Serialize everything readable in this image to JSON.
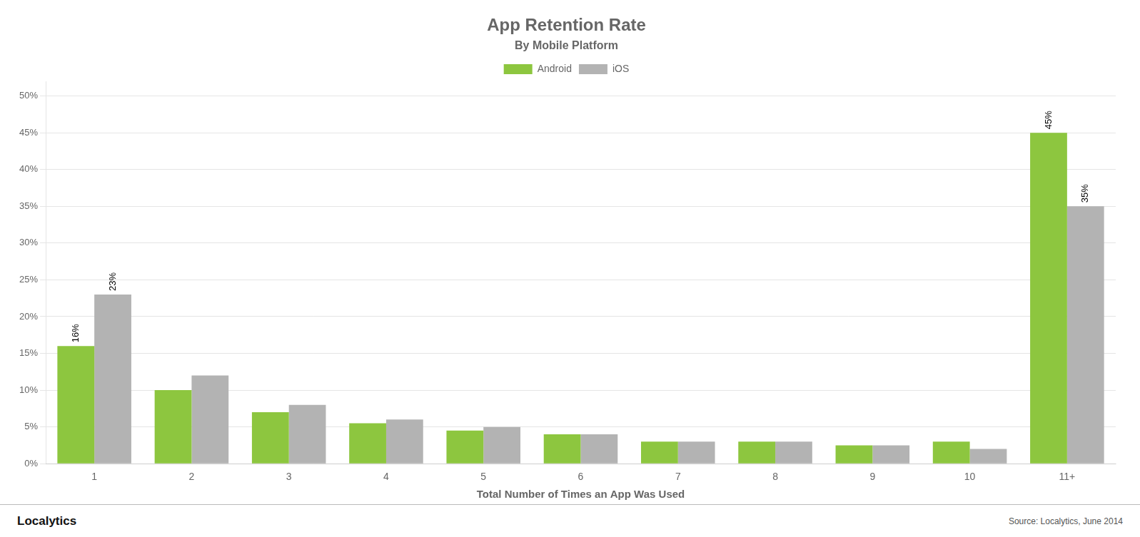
{
  "chart_data": {
    "type": "bar",
    "title": "App Retention Rate",
    "subtitle": "By Mobile Platform",
    "xlabel": "Total Number of Times an App Was Used",
    "categories": [
      "1",
      "2",
      "3",
      "4",
      "5",
      "6",
      "7",
      "8",
      "9",
      "10",
      "11+"
    ],
    "series": [
      {
        "name": "Android",
        "color": "#8dc63f",
        "values": [
          16,
          10,
          7,
          5.5,
          4.5,
          4,
          3,
          3,
          2.5,
          3,
          45
        ],
        "value_labels": [
          "16%",
          null,
          null,
          null,
          null,
          null,
          null,
          null,
          null,
          null,
          "45%"
        ]
      },
      {
        "name": "iOS",
        "color": "#b3b3b3",
        "values": [
          23,
          12,
          8,
          6,
          5,
          4,
          3,
          3,
          2.5,
          2,
          35
        ],
        "value_labels": [
          "23%",
          null,
          null,
          null,
          null,
          null,
          null,
          null,
          null,
          null,
          "35%"
        ]
      }
    ],
    "ylim": [
      0,
      52
    ],
    "yticks": [
      {
        "value": 0,
        "label": "0%"
      },
      {
        "value": 5,
        "label": "5%"
      },
      {
        "value": 10,
        "label": "10%"
      },
      {
        "value": 15,
        "label": "15%"
      },
      {
        "value": 20,
        "label": "20%"
      },
      {
        "value": 25,
        "label": "25%"
      },
      {
        "value": 30,
        "label": "30%"
      },
      {
        "value": 35,
        "label": "35%"
      },
      {
        "value": 40,
        "label": "40%"
      },
      {
        "value": 45,
        "label": "45%"
      },
      {
        "value": 50,
        "label": "50%"
      }
    ],
    "grid": true,
    "legend": "top",
    "annotations": [
      "Localytics",
      "Source: Localytics, June 2014"
    ]
  }
}
